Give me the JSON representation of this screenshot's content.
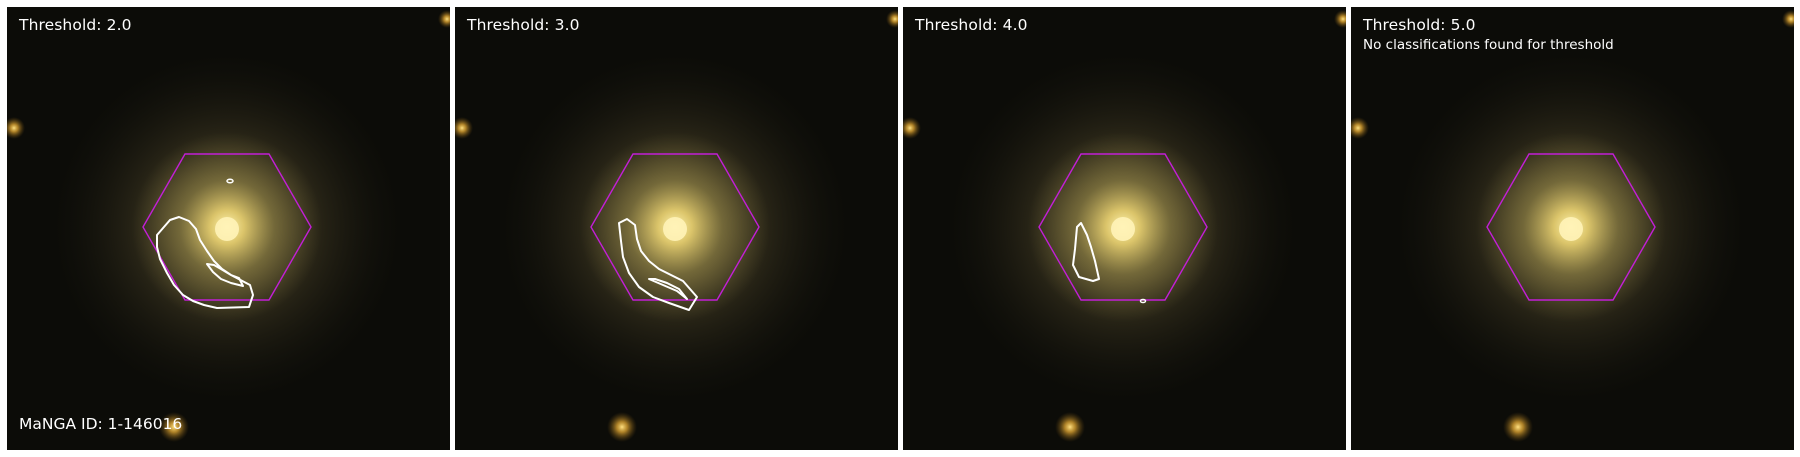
{
  "panels": [
    {
      "threshold_label": "Threshold: 2.0",
      "note": "",
      "has_contours": true
    },
    {
      "threshold_label": "Threshold: 3.0",
      "note": "",
      "has_contours": true
    },
    {
      "threshold_label": "Threshold: 4.0",
      "note": "",
      "has_contours": true
    },
    {
      "threshold_label": "Threshold: 5.0",
      "note": "No classifications found for threshold",
      "has_contours": false
    }
  ],
  "manga_id_label": "MaNGA ID: 1-146016",
  "colors": {
    "hexagon": "#c21fd6",
    "contour": "#ffffff",
    "background": "#0c0c08",
    "galaxy_core": "#fff0a0",
    "galaxy_halo": "#6e6236"
  }
}
